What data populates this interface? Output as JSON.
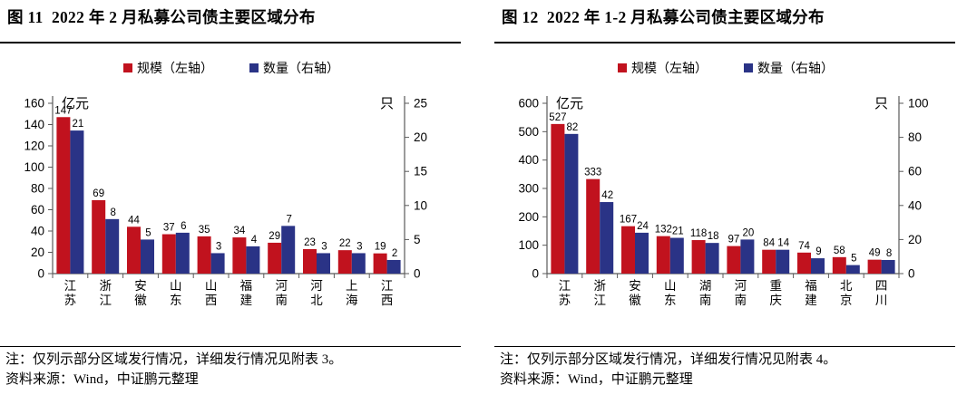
{
  "colors": {
    "scale_red": "#C1121E",
    "count_blue": "#2A3386",
    "axis": "#595959",
    "text": "#000000"
  },
  "panels": [
    {
      "title": "图 11  2022 年 2 月私募公司债主要区域分布",
      "note_line1": "注：仅列示部分区域发行情况，详细发行情况见附表 3。",
      "note_line2": "资料来源：Wind，中证鹏元整理"
    },
    {
      "title": "图 12  2022 年 1-2 月私募公司债主要区域分布",
      "note_line1": "注：仅列示部分区域发行情况，详细发行情况见附表 4。",
      "note_line2": "资料来源：Wind，中证鹏元整理"
    }
  ],
  "chart_data": [
    {
      "type": "bar",
      "title": "图 11 2022 年 2 月私募公司债主要区域分布",
      "categories": [
        "江苏",
        "浙江",
        "安徽",
        "山东",
        "山西",
        "福建",
        "河南",
        "河北",
        "上海",
        "江西"
      ],
      "series": [
        {
          "name": "规模（左轴）",
          "axis": "left",
          "unit": "亿元",
          "color": "#C1121E",
          "values": [
            147,
            69,
            44,
            37,
            35,
            34,
            29,
            23,
            22,
            19
          ]
        },
        {
          "name": "数量（右轴）",
          "axis": "right",
          "unit": "只",
          "color": "#2A3386",
          "values": [
            21,
            8,
            5,
            6,
            3,
            4,
            7,
            3,
            3,
            2
          ]
        }
      ],
      "left_axis": {
        "label": "亿元",
        "min": 0,
        "max": 160,
        "step": 20
      },
      "right_axis": {
        "label": "只",
        "min": 0,
        "max": 25,
        "step": 5
      },
      "legend_position": "top",
      "grid": false,
      "data_labels": true
    },
    {
      "type": "bar",
      "title": "图 12 2022 年 1-2 月私募公司债主要区域分布",
      "categories": [
        "江苏",
        "浙江",
        "安徽",
        "山东",
        "湖南",
        "河南",
        "重庆",
        "福建",
        "北京",
        "四川"
      ],
      "series": [
        {
          "name": "规模（左轴）",
          "axis": "left",
          "unit": "亿元",
          "color": "#C1121E",
          "values": [
            527,
            333,
            167,
            132,
            118,
            97,
            84,
            74,
            58,
            49
          ]
        },
        {
          "name": "数量（右轴）",
          "axis": "right",
          "unit": "只",
          "color": "#2A3386",
          "values": [
            82,
            42,
            24,
            21,
            18,
            20,
            14,
            9,
            5,
            8
          ]
        }
      ],
      "left_axis": {
        "label": "亿元",
        "min": 0,
        "max": 600,
        "step": 100
      },
      "right_axis": {
        "label": "只",
        "min": 0,
        "max": 100,
        "step": 20
      },
      "legend_position": "top",
      "grid": false,
      "data_labels": true
    }
  ]
}
